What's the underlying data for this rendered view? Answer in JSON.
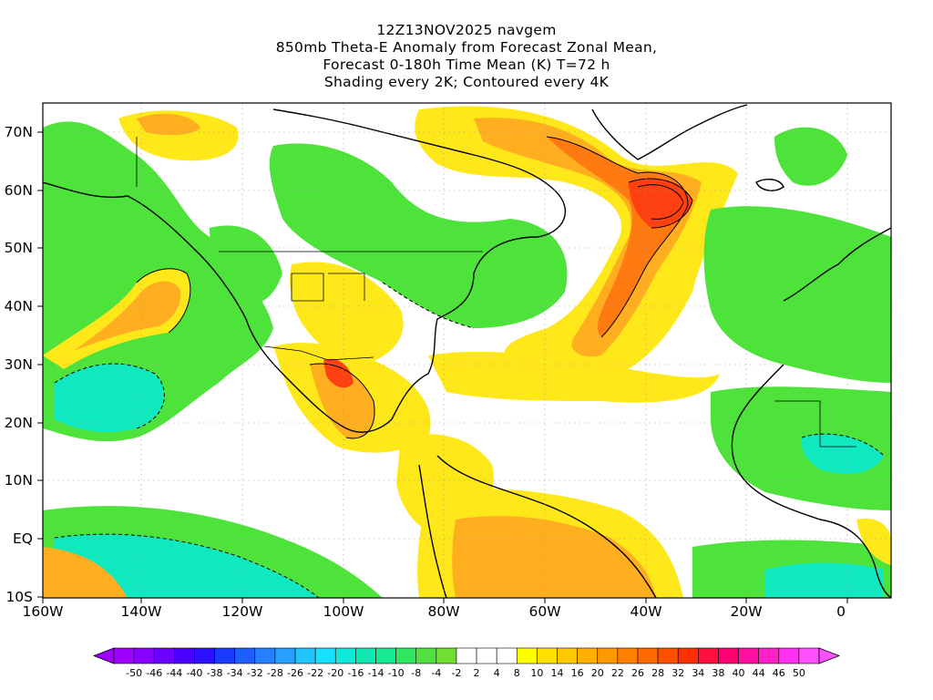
{
  "title_lines": [
    "12Z13NOV2025 navgem",
    "850mb Theta-E Anomaly from Forecast Zonal Mean,",
    "Forecast 0-180h Time Mean (K) T=72 h",
    "Shading every 2K; Contoured every 4K"
  ],
  "lat_labels": [
    "70N",
    "60N",
    "50N",
    "40N",
    "30N",
    "20N",
    "10N",
    "EQ",
    "10S"
  ],
  "lon_labels": [
    "160W",
    "140W",
    "120W",
    "100W",
    "80W",
    "60W",
    "40W",
    "20W",
    "0"
  ],
  "colorbar": {
    "labels": [
      "-50",
      "-46",
      "-44",
      "-40",
      "-38",
      "-34",
      "-32",
      "-28",
      "-26",
      "-22",
      "-20",
      "-16",
      "-14",
      "-10",
      "-8",
      "-4",
      "-2",
      "2",
      "4",
      "8",
      "10",
      "14",
      "16",
      "20",
      "22",
      "26",
      "28",
      "32",
      "34",
      "38",
      "40",
      "44",
      "46",
      "50"
    ],
    "colors": [
      "#a000ff",
      "#8800ff",
      "#6a00ff",
      "#4a00ff",
      "#2a10ff",
      "#1a3aff",
      "#1e5eff",
      "#2480ff",
      "#28a0ff",
      "#22c4ff",
      "#18e0ff",
      "#10e8d8",
      "#10e8b0",
      "#18e890",
      "#30e860",
      "#50e040",
      "#70e030",
      "#ffffff",
      "#ffffff",
      "#ffffff",
      "#ffff00",
      "#ffe000",
      "#ffc800",
      "#ffb000",
      "#ff9800",
      "#ff8000",
      "#ff6a00",
      "#ff5000",
      "#ff3000",
      "#ff1040",
      "#ff0070",
      "#ff10a0",
      "#ff20c8",
      "#ff30f0",
      "#ff50ff"
    ]
  },
  "map_colors": {
    "green": "#4de33a",
    "lightgreen": "#7ae85a",
    "teal": "#10e8c0",
    "yellow": "#ffe81a",
    "orange": "#ffae20",
    "darkorange": "#ff7a10",
    "red": "#ff4010",
    "white": "#ffffff"
  }
}
